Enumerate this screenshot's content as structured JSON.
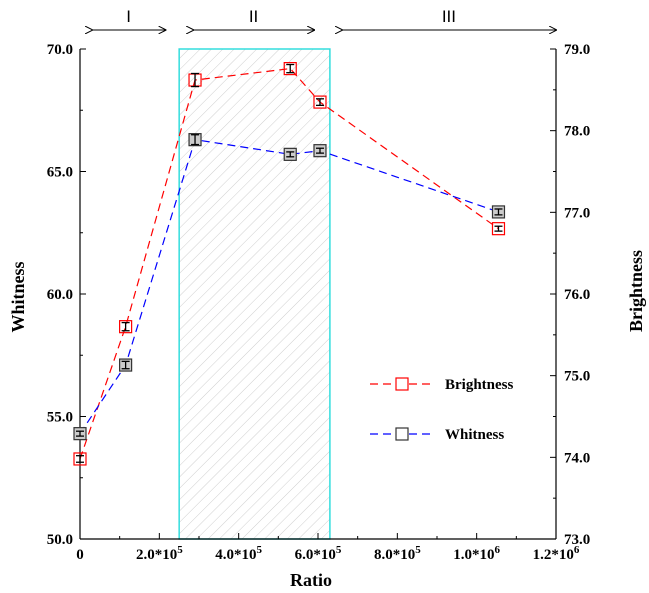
{
  "chart_data": {
    "type": "line",
    "xlabel": "Ratio",
    "ylabel_left": "Whitness",
    "ylabel_right": "Brightness",
    "xlim": [
      0,
      1200000
    ],
    "ylim_left": [
      50,
      70
    ],
    "ylim_right": [
      73,
      79
    ],
    "x_ticks": [
      {
        "value": 0,
        "label": "0"
      },
      {
        "value": 200000,
        "label": "2.0*10^5"
      },
      {
        "value": 400000,
        "label": "4.0*10^5"
      },
      {
        "value": 600000,
        "label": "6.0*10^5"
      },
      {
        "value": 800000,
        "label": "8.0*10^5"
      },
      {
        "value": 1000000,
        "label": "1.0*10^6"
      },
      {
        "value": 1200000,
        "label": "1.2*10^6"
      }
    ],
    "y_left_ticks": [
      "50.0",
      "55.0",
      "60.0",
      "65.0",
      "70.0"
    ],
    "y_right_ticks": [
      "73.0",
      "74.0",
      "75.0",
      "76.0",
      "77.0",
      "78.0",
      "79.0"
    ],
    "highlight_region": {
      "x_start": 250000,
      "x_end": 630000
    },
    "regions": [
      {
        "label": "I",
        "x_start": 30000,
        "x_end": 215000
      },
      {
        "label": "II",
        "x_start": 285000,
        "x_end": 590000
      },
      {
        "label": "III",
        "x_start": 660000,
        "x_end": 1200000
      }
    ],
    "series": [
      {
        "name": "Brightness",
        "axis": "right",
        "color": "#ff0000",
        "x": [
          0,
          115000,
          290000,
          530000,
          605000,
          1055000
        ],
        "y": [
          73.98,
          75.6,
          78.62,
          78.76,
          78.35,
          76.8
        ],
        "err": [
          0.04,
          0.05,
          0.08,
          0.05,
          0.04,
          0.03
        ]
      },
      {
        "name": "Whitness",
        "axis": "left",
        "color": "#0000ff",
        "x": [
          0,
          115000,
          290000,
          530000,
          605000,
          1055000
        ],
        "y": [
          54.3,
          57.1,
          66.3,
          65.7,
          65.85,
          63.35
        ],
        "err": [
          0.1,
          0.15,
          0.2,
          0.1,
          0.1,
          0.12
        ]
      }
    ],
    "legend_position": "center-right",
    "grid": false
  }
}
